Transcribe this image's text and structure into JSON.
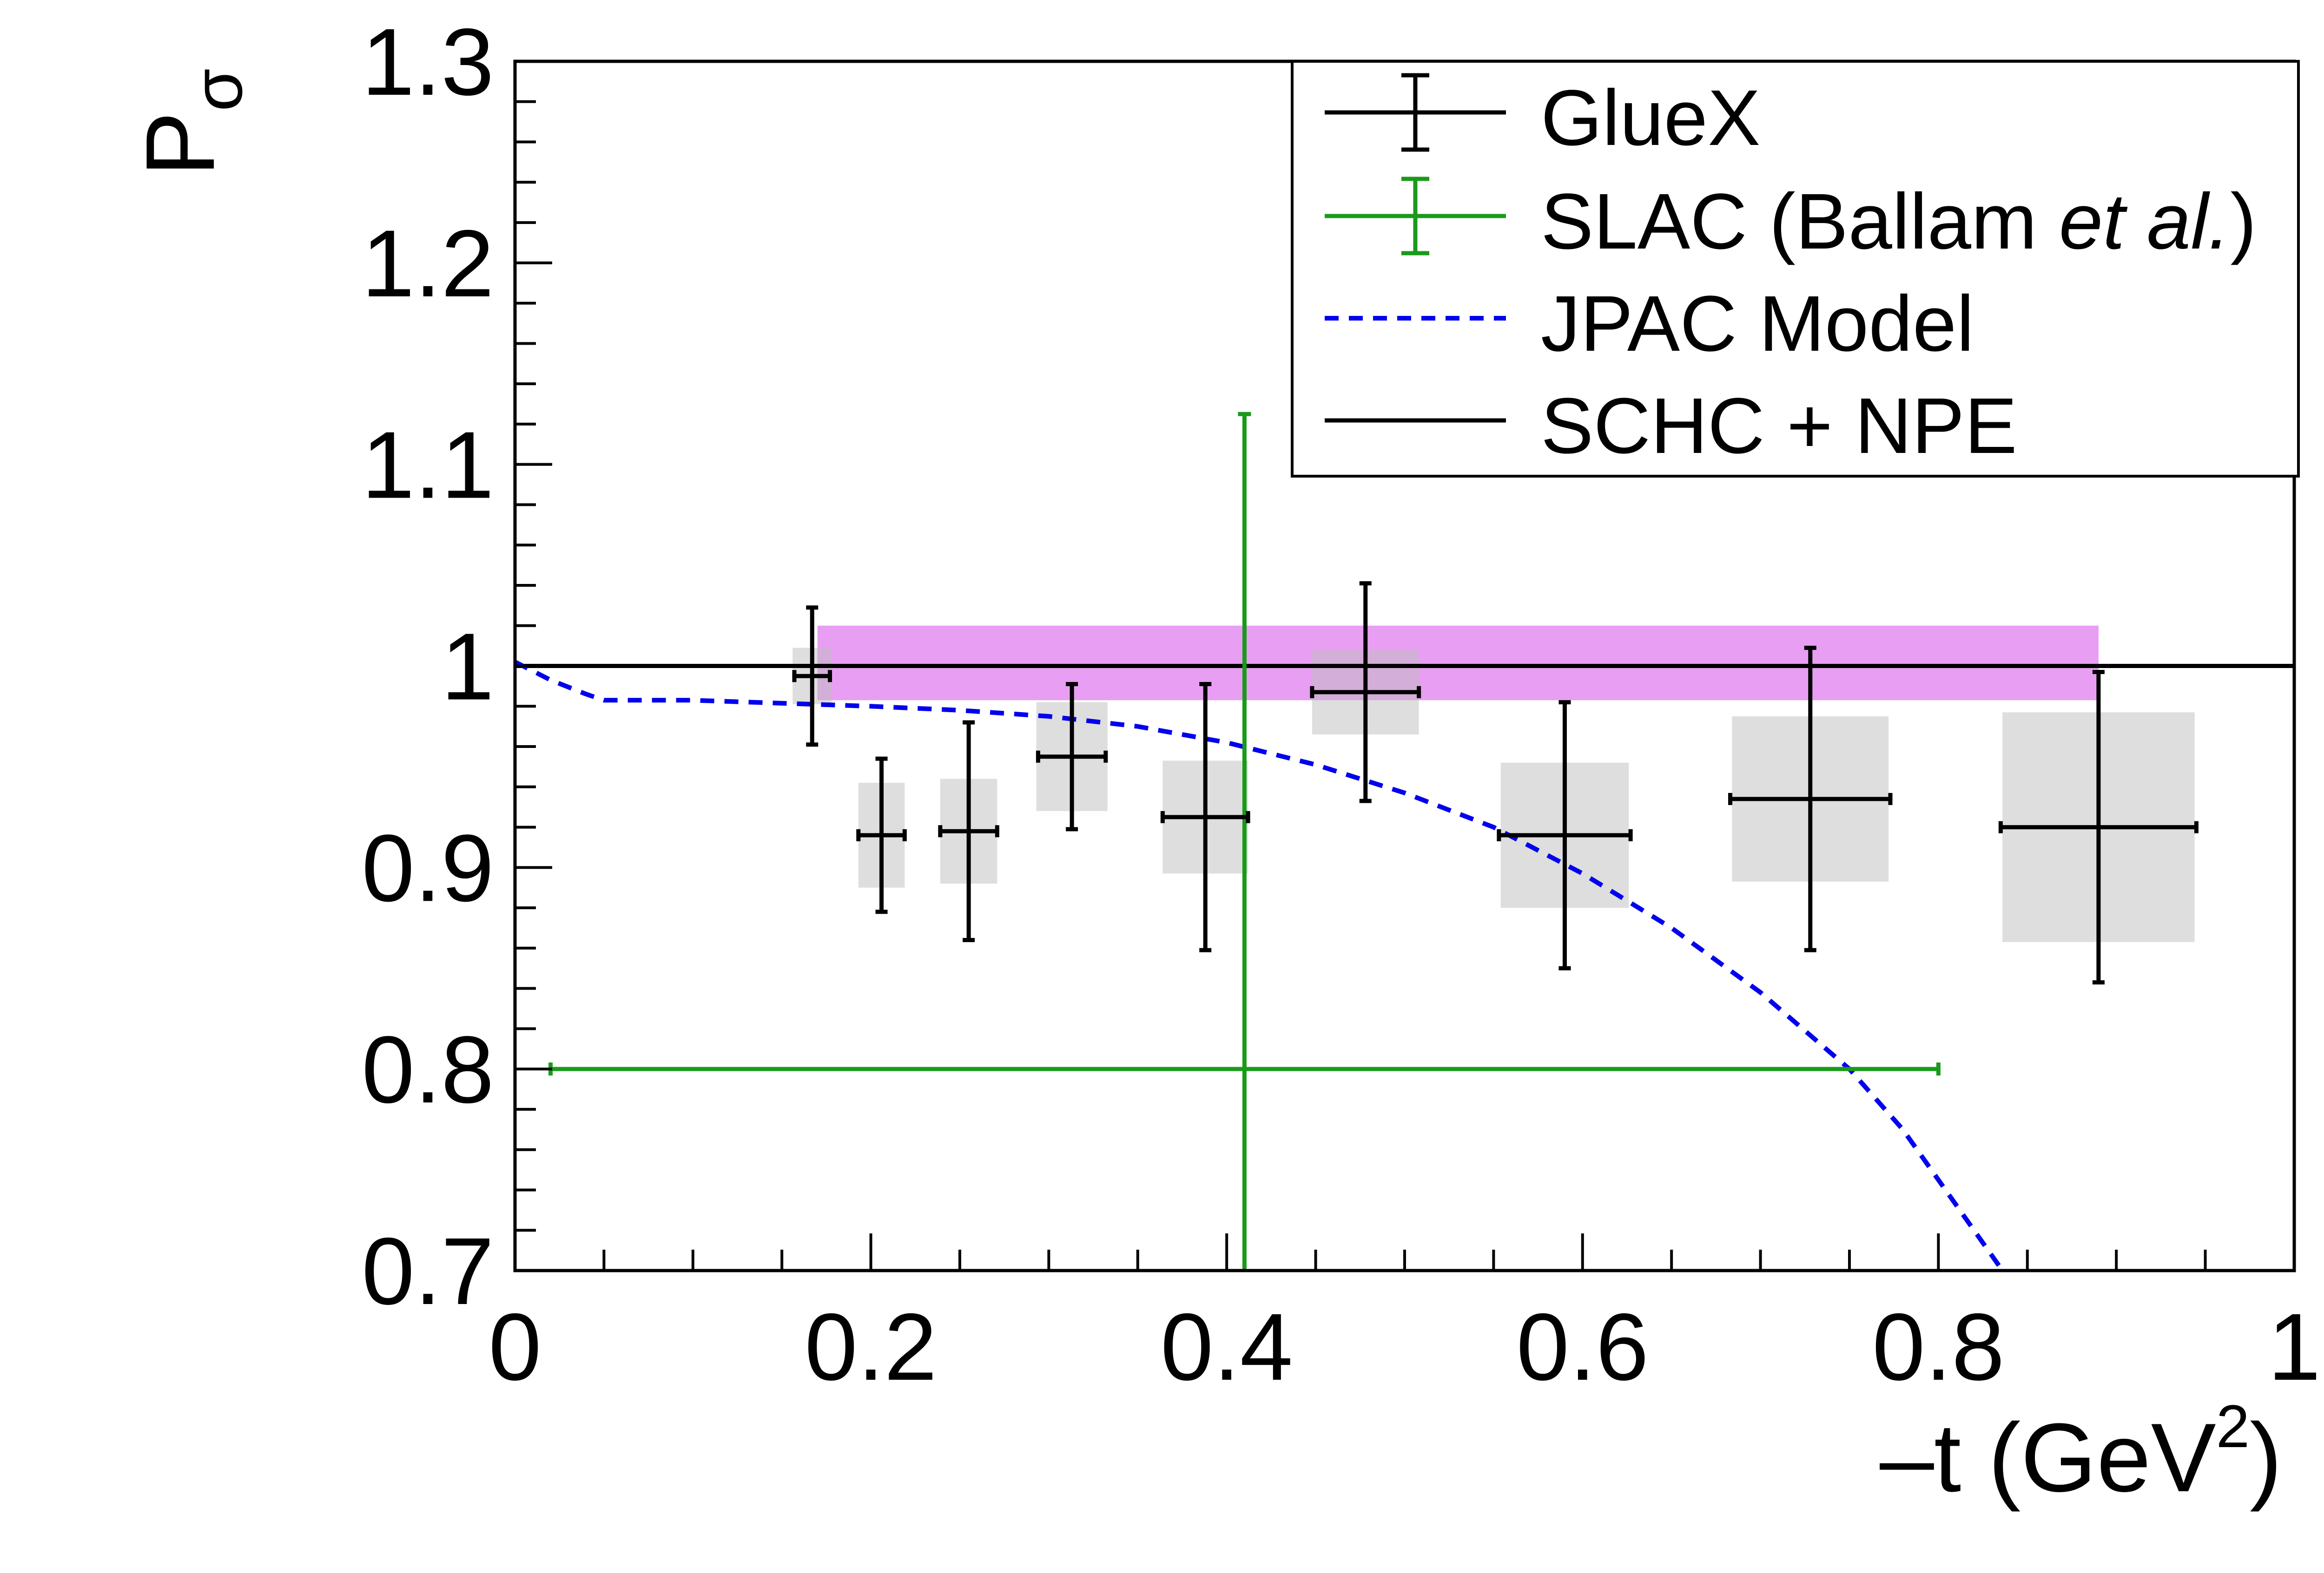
{
  "chart_data": {
    "type": "scatter",
    "title": "",
    "xlabel_main": "–t (GeV",
    "xlabel_sup": "2",
    "xlabel_close": ")",
    "ylabel_main": "P",
    "ylabel_sub": "σ",
    "xlim": [
      0,
      1
    ],
    "ylim": [
      0.7,
      1.3
    ],
    "x_ticks": [
      0,
      0.2,
      0.4,
      0.6,
      0.8,
      1
    ],
    "x_tick_labels": [
      "0",
      "0.2",
      "0.4",
      "0.6",
      "0.8",
      "1"
    ],
    "y_ticks": [
      0.7,
      0.8,
      0.9,
      1.0,
      1.1,
      1.2,
      1.3
    ],
    "y_tick_labels": [
      "0.7",
      "0.8",
      "0.9",
      "1",
      "1.1",
      "1.2",
      "1.3"
    ],
    "grid": false,
    "legend_position": "top-right",
    "legend": [
      {
        "label": "GlueX",
        "style": "errorbar",
        "color": "#000000"
      },
      {
        "label_plain": "SLAC (Ballam ",
        "label_italic": "et al.",
        "label_tail": ")",
        "style": "errorbar",
        "color": "#1a9a1a"
      },
      {
        "label": "JPAC Model",
        "style": "dashed",
        "color": "#0000ee"
      },
      {
        "label": "SCHC + NPE",
        "style": "line",
        "color": "#000000"
      }
    ],
    "series": [
      {
        "name": "GlueX",
        "color": "#000000",
        "points": [
          {
            "x": 0.167,
            "y": 0.995,
            "xerr": 0.01,
            "yerr": 0.034,
            "sys_xhw": 0.011,
            "sys_yhw": 0.014
          },
          {
            "x": 0.206,
            "y": 0.916,
            "xerr": 0.013,
            "yerr": 0.038,
            "sys_xhw": 0.013,
            "sys_yhw": 0.026
          },
          {
            "x": 0.255,
            "y": 0.918,
            "xerr": 0.016,
            "yerr": 0.054,
            "sys_xhw": 0.016,
            "sys_yhw": 0.026
          },
          {
            "x": 0.313,
            "y": 0.955,
            "xerr": 0.019,
            "yerr": 0.036,
            "sys_xhw": 0.02,
            "sys_yhw": 0.027
          },
          {
            "x": 0.388,
            "y": 0.925,
            "xerr": 0.024,
            "yerr": 0.066,
            "sys_xhw": 0.024,
            "sys_yhw": 0.028
          },
          {
            "x": 0.478,
            "y": 0.987,
            "xerr": 0.03,
            "yerr": 0.054,
            "sys_xhw": 0.03,
            "sys_yhw": 0.021
          },
          {
            "x": 0.59,
            "y": 0.916,
            "xerr": 0.037,
            "yerr": 0.066,
            "sys_xhw": 0.036,
            "sys_yhw": 0.036
          },
          {
            "x": 0.728,
            "y": 0.934,
            "xerr": 0.045,
            "yerr": 0.075,
            "sys_xhw": 0.044,
            "sys_yhw": 0.041
          },
          {
            "x": 0.89,
            "y": 0.92,
            "xerr": 0.055,
            "yerr": 0.077,
            "sys_xhw": 0.054,
            "sys_yhw": 0.057
          }
        ]
      },
      {
        "name": "SLAC (Ballam et al.)",
        "color": "#1a9a1a",
        "points": [
          {
            "x": 0.41,
            "y": 0.8,
            "xlo": 0.02,
            "xhi": 0.8,
            "ylo": 0.7,
            "yhi": 1.125
          }
        ]
      },
      {
        "name": "JPAC Model",
        "color": "#0000ee",
        "x": [
          0,
          0.02,
          0.04,
          0.05,
          0.1,
          0.2,
          0.25,
          0.3,
          0.35,
          0.4,
          0.45,
          0.5,
          0.55,
          0.6,
          0.65,
          0.7,
          0.75,
          0.78,
          0.8,
          0.82,
          0.836
        ],
        "y": [
          1.002,
          0.993,
          0.986,
          0.983,
          0.983,
          0.98,
          0.978,
          0.975,
          0.97,
          0.962,
          0.951,
          0.937,
          0.92,
          0.897,
          0.87,
          0.838,
          0.8,
          0.77,
          0.745,
          0.72,
          0.7
        ]
      },
      {
        "name": "SCHC + NPE",
        "color": "#000000",
        "x": [
          0,
          1
        ],
        "y": [
          1.0,
          1.0
        ]
      }
    ],
    "band": {
      "xmin": 0.17,
      "xmax": 0.89,
      "ymin": 0.983,
      "ymax": 1.02,
      "color": "#e89ef2"
    }
  }
}
